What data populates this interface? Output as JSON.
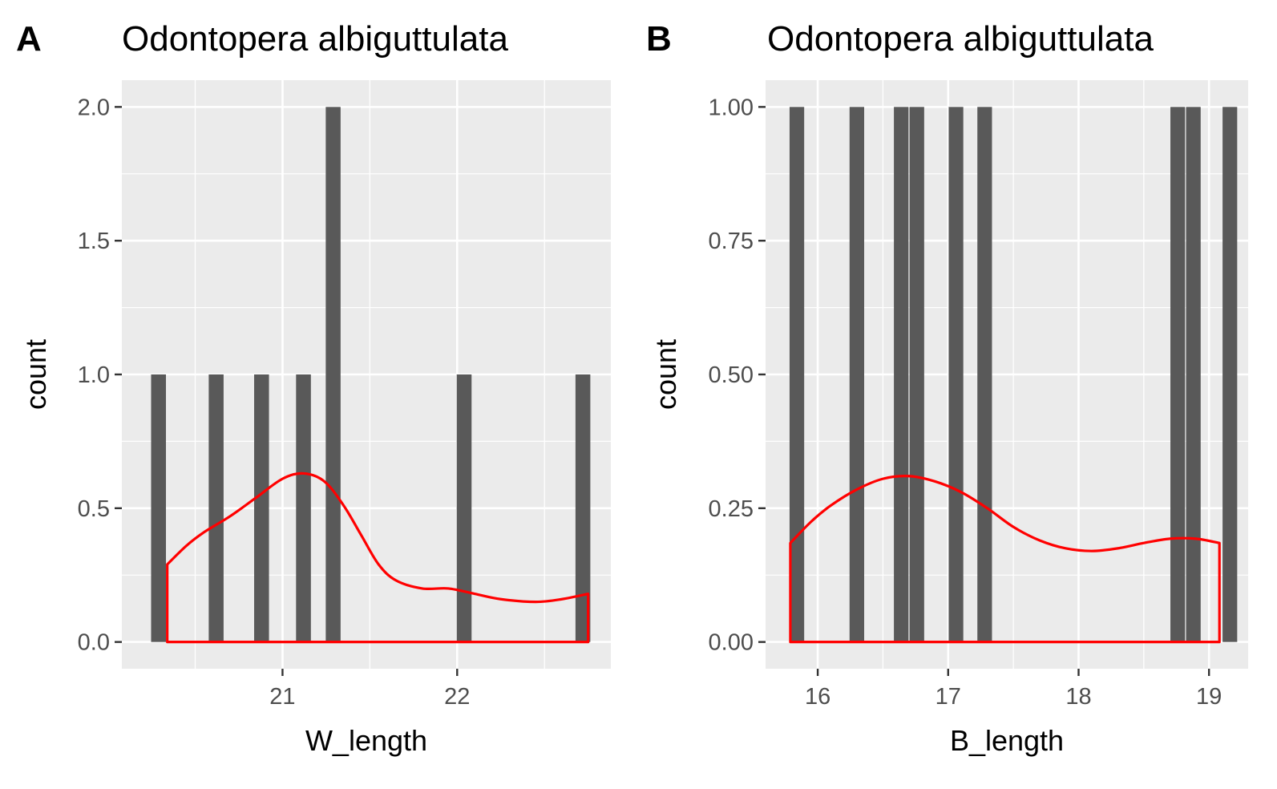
{
  "chart_data": [
    {
      "type": "bar",
      "panel_label": "A",
      "title": "Odontopera albiguttulata",
      "xlabel": "W_length",
      "ylabel": "count",
      "xlim": [
        20.08,
        22.88
      ],
      "ylim": [
        -0.1,
        2.1
      ],
      "x_ticks": [
        21,
        22
      ],
      "x_tick_labels": [
        "21",
        "22"
      ],
      "y_ticks": [
        0,
        0.5,
        1,
        1.5,
        2
      ],
      "y_tick_labels": [
        "0.0",
        "0.5",
        "1.0",
        "1.5",
        "2.0"
      ],
      "bin_width": 0.085,
      "bars": [
        {
          "x": 20.29,
          "count": 1
        },
        {
          "x": 20.62,
          "count": 1
        },
        {
          "x": 20.88,
          "count": 1
        },
        {
          "x": 21.12,
          "count": 1
        },
        {
          "x": 21.29,
          "count": 2
        },
        {
          "x": 22.04,
          "count": 1
        },
        {
          "x": 22.72,
          "count": 1
        }
      ],
      "density_color": "#ff0000",
      "bar_color": "#595959",
      "density": [
        [
          20.34,
          0.29
        ],
        [
          20.45,
          0.36
        ],
        [
          20.55,
          0.41
        ],
        [
          20.7,
          0.47
        ],
        [
          20.85,
          0.54
        ],
        [
          21.0,
          0.61
        ],
        [
          21.12,
          0.63
        ],
        [
          21.24,
          0.6
        ],
        [
          21.35,
          0.51
        ],
        [
          21.45,
          0.4
        ],
        [
          21.55,
          0.29
        ],
        [
          21.65,
          0.23
        ],
        [
          21.8,
          0.2
        ],
        [
          21.95,
          0.2
        ],
        [
          22.1,
          0.18
        ],
        [
          22.25,
          0.16
        ],
        [
          22.45,
          0.15
        ],
        [
          22.6,
          0.16
        ],
        [
          22.75,
          0.18
        ]
      ],
      "density_x_range": [
        20.34,
        22.75
      ]
    },
    {
      "type": "bar",
      "panel_label": "B",
      "title": "Odontopera albiguttulata",
      "xlabel": "B_length",
      "ylabel": "count",
      "xlim": [
        15.6,
        19.3
      ],
      "ylim": [
        -0.05,
        1.05
      ],
      "x_ticks": [
        16,
        17,
        18,
        19
      ],
      "x_tick_labels": [
        "16",
        "17",
        "18",
        "19"
      ],
      "y_ticks": [
        0,
        0.25,
        0.5,
        0.75,
        1
      ],
      "y_tick_labels": [
        "0.00",
        "0.25",
        "0.50",
        "0.75",
        "1.00"
      ],
      "bin_width": 0.112,
      "bars": [
        {
          "x": 15.84,
          "count": 1
        },
        {
          "x": 16.3,
          "count": 1
        },
        {
          "x": 16.64,
          "count": 1
        },
        {
          "x": 16.76,
          "count": 1
        },
        {
          "x": 17.06,
          "count": 1
        },
        {
          "x": 17.28,
          "count": 1
        },
        {
          "x": 18.76,
          "count": 1
        },
        {
          "x": 18.88,
          "count": 1
        },
        {
          "x": 19.16,
          "count": 1
        }
      ],
      "density_color": "#ff0000",
      "bar_color": "#595959",
      "density": [
        [
          15.79,
          0.185
        ],
        [
          15.95,
          0.225
        ],
        [
          16.1,
          0.255
        ],
        [
          16.3,
          0.285
        ],
        [
          16.5,
          0.305
        ],
        [
          16.7,
          0.31
        ],
        [
          16.9,
          0.3
        ],
        [
          17.1,
          0.28
        ],
        [
          17.3,
          0.25
        ],
        [
          17.5,
          0.215
        ],
        [
          17.7,
          0.19
        ],
        [
          17.9,
          0.175
        ],
        [
          18.1,
          0.17
        ],
        [
          18.3,
          0.175
        ],
        [
          18.5,
          0.185
        ],
        [
          18.7,
          0.193
        ],
        [
          18.9,
          0.193
        ],
        [
          19.08,
          0.185
        ]
      ],
      "density_x_range": [
        15.79,
        19.08
      ]
    }
  ]
}
